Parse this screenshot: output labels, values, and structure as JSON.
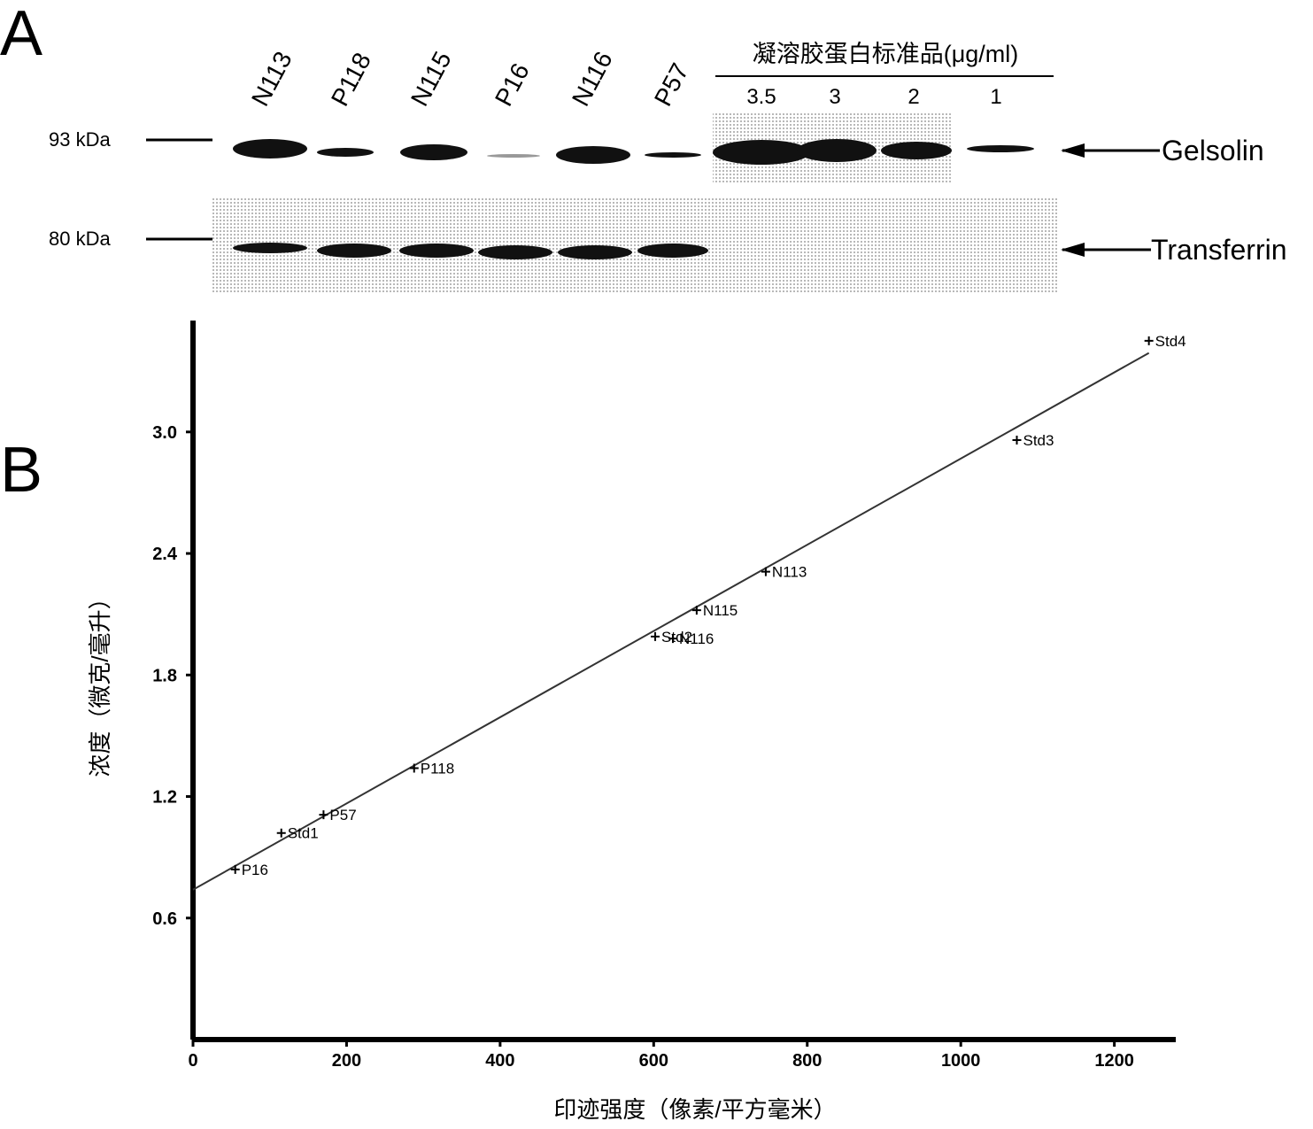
{
  "panel_labels": [
    "A",
    "B"
  ],
  "blot": {
    "lanes": [
      "N113",
      "P118",
      "N115",
      "P16",
      "N116",
      "P57"
    ],
    "standards_title": "凝溶胶蛋白标准品(μg/ml)",
    "standards": [
      "3.5",
      "3",
      "2",
      "1"
    ],
    "markers": [
      "93 kDa",
      "80 kDa"
    ],
    "bands": [
      "Gelsolin",
      "Transferrin"
    ]
  },
  "chart_data": {
    "type": "scatter",
    "x_label": "印迹强度（像素/平方毫米）",
    "y_label": "浓度（微克/毫升）",
    "x": [
      55,
      115,
      170,
      288,
      602,
      625,
      656,
      746,
      1073,
      1245
    ],
    "values": [
      0.84,
      1.02,
      1.11,
      1.34,
      1.99,
      1.98,
      2.12,
      2.31,
      2.96,
      3.45
    ],
    "point_labels": [
      "P16",
      "Std1",
      "P57",
      "P118",
      "Std2",
      "N116",
      "N115",
      "N113",
      "Std3",
      "Std4"
    ],
    "color": "#000000",
    "trendline": {
      "x": [
        0,
        1245
      ],
      "y": [
        0.74,
        3.39
      ]
    },
    "xlim": [
      0,
      1280
    ],
    "ylim": [
      0,
      3.55
    ],
    "xticks": [
      0,
      200,
      400,
      600,
      800,
      1000,
      1200
    ],
    "yticks": [
      0.6,
      1.2,
      1.8,
      2.4,
      {
        "value": 3,
        "label": "3.0"
      }
    ]
  }
}
